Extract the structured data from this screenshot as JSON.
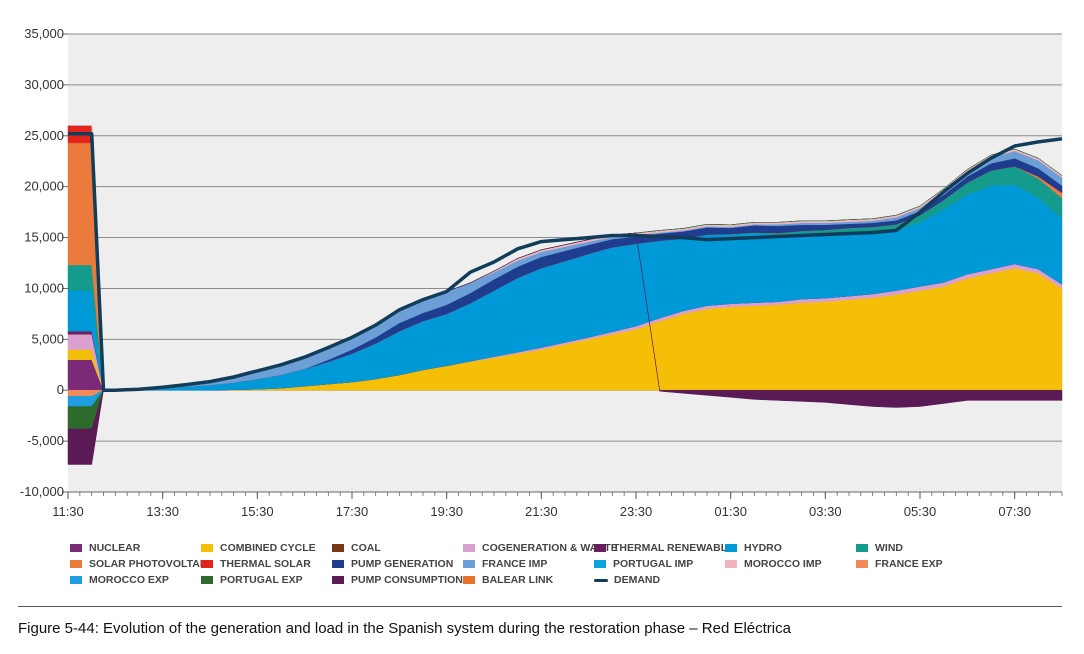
{
  "caption": "Figure 5-44: Evolution of the generation and load in the Spanish system during the restoration phase – Red Eléctrica",
  "legend": [
    {
      "label": "NUCLEAR",
      "color": "#7b2a78"
    },
    {
      "label": "COMBINED CYCLE",
      "color": "#f5bf08"
    },
    {
      "label": "COAL",
      "color": "#7a3514"
    },
    {
      "label": "COGENERATION & WASTE",
      "color": "#d9a0d0"
    },
    {
      "label": "THERMAL RENEWABLE",
      "color": "#6a1f5d"
    },
    {
      "label": "HYDRO",
      "color": "#0099d8"
    },
    {
      "label": "WIND",
      "color": "#159b8c"
    },
    {
      "label": "SOLAR PHOTOVOLTAIC",
      "color": "#ea7b3d"
    },
    {
      "label": "THERMAL SOLAR",
      "color": "#e3241b"
    },
    {
      "label": "PUMP GENERATION",
      "color": "#1f3d8f"
    },
    {
      "label": "FRANCE IMP",
      "color": "#6b9fd6"
    },
    {
      "label": "PORTUGAL IMP",
      "color": "#0aa3e0"
    },
    {
      "label": "MOROCCO IMP",
      "color": "#f2b3bf"
    },
    {
      "label": "FRANCE EXP",
      "color": "#ef8a5a"
    },
    {
      "label": "MOROCCO EXP",
      "color": "#1e9ee0"
    },
    {
      "label": "PORTUGAL EXP",
      "color": "#2d6b2d"
    },
    {
      "label": "PUMP CONSUMPTION",
      "color": "#5a1a55"
    },
    {
      "label": "BALEAR LINK",
      "color": "#e8712a"
    },
    {
      "label": "DEMAND",
      "color": "#123d5a",
      "line": true
    }
  ],
  "chart_data": {
    "type": "area",
    "stacked": true,
    "ylim": [
      -10000,
      35000
    ],
    "yticks": [
      -10000,
      -5000,
      0,
      5000,
      10000,
      15000,
      20000,
      25000,
      30000,
      35000
    ],
    "ytick_labels": [
      "-10,000",
      "-5,000",
      "0",
      "5,000",
      "10,000",
      "15,000",
      "20,000",
      "25,000",
      "30,000",
      "35,000"
    ],
    "x_hours": [
      11.5,
      12.0,
      12.25,
      12.5,
      13.0,
      13.5,
      14.0,
      14.5,
      15.0,
      15.5,
      16.0,
      16.5,
      17.0,
      17.5,
      18.0,
      18.5,
      19.0,
      19.5,
      20.0,
      20.5,
      21.0,
      21.5,
      22.0,
      22.5,
      23.0,
      23.5,
      24.0,
      24.5,
      25.0,
      25.5,
      26.0,
      26.5,
      27.0,
      27.5,
      28.0,
      28.5,
      29.0,
      29.5,
      30.0,
      30.5,
      31.0,
      31.5,
      32.0,
      32.5
    ],
    "xticks": [
      11.5,
      13.5,
      15.5,
      17.5,
      19.5,
      21.5,
      23.5,
      25.5,
      27.5,
      29.5,
      31.5
    ],
    "xtick_labels": [
      "11:30",
      "13:30",
      "15:30",
      "17:30",
      "19:30",
      "21:30",
      "23:30",
      "01:30",
      "03:30",
      "05:30",
      "07:30"
    ],
    "x_range": [
      11.5,
      32.5
    ],
    "series": [
      {
        "name": "NUCLEAR",
        "color": "#7b2a78",
        "values": [
          3000,
          3000,
          0,
          0,
          0,
          0,
          0,
          0,
          0,
          0,
          0,
          0,
          0,
          0,
          0,
          0,
          0,
          0,
          0,
          0,
          0,
          0,
          0,
          0,
          0,
          0,
          0,
          0,
          0,
          0,
          0,
          0,
          0,
          0,
          0,
          0,
          0,
          0,
          0,
          0,
          0,
          0,
          0,
          0
        ]
      },
      {
        "name": "COMBINED CYCLE",
        "color": "#f5bf08",
        "values": [
          1000,
          1000,
          0,
          0,
          0,
          0,
          0,
          0,
          50,
          100,
          200,
          400,
          600,
          800,
          1100,
          1500,
          2000,
          2400,
          2800,
          3200,
          3600,
          4000,
          4500,
          5000,
          5500,
          6000,
          6800,
          7500,
          8000,
          8200,
          8300,
          8400,
          8600,
          8700,
          8900,
          9100,
          9400,
          9800,
          10200,
          11000,
          11500,
          12000,
          11500,
          10000
        ]
      },
      {
        "name": "COAL",
        "color": "#7a3514",
        "values": [
          0,
          0,
          0,
          0,
          0,
          0,
          0,
          0,
          0,
          0,
          0,
          0,
          0,
          0,
          0,
          0,
          0,
          0,
          0,
          0,
          0,
          0,
          0,
          0,
          0,
          0,
          0,
          0,
          0,
          0,
          0,
          0,
          0,
          0,
          0,
          0,
          0,
          0,
          0,
          0,
          0,
          0,
          0,
          0
        ]
      },
      {
        "name": "COGENERATION & WASTE",
        "color": "#d9a0d0",
        "values": [
          1500,
          1500,
          0,
          0,
          0,
          0,
          0,
          0,
          0,
          0,
          0,
          0,
          0,
          0,
          0,
          0,
          0,
          0,
          50,
          100,
          150,
          200,
          200,
          200,
          250,
          300,
          300,
          300,
          300,
          300,
          300,
          300,
          350,
          350,
          350,
          350,
          400,
          400,
          400,
          400,
          400,
          400,
          400,
          400
        ]
      },
      {
        "name": "THERMAL RENEWABLE",
        "color": "#6a1f5d",
        "values": [
          300,
          300,
          0,
          0,
          0,
          0,
          0,
          0,
          0,
          0,
          0,
          0,
          0,
          0,
          0,
          0,
          0,
          0,
          0,
          0,
          0,
          0,
          0,
          0,
          0,
          0,
          0,
          0,
          0,
          0,
          0,
          0,
          0,
          0,
          0,
          0,
          0,
          0,
          0,
          0,
          0,
          0,
          0,
          0
        ]
      },
      {
        "name": "HYDRO",
        "color": "#0099d8",
        "values": [
          4000,
          4000,
          0,
          0,
          100,
          200,
          350,
          500,
          700,
          1000,
          1300,
          1700,
          2200,
          2800,
          3500,
          4300,
          4800,
          5100,
          5700,
          6500,
          7300,
          7800,
          8000,
          8200,
          8300,
          8100,
          7600,
          7100,
          7000,
          6800,
          6800,
          6600,
          6500,
          6400,
          6300,
          6100,
          5900,
          6300,
          7200,
          7800,
          8200,
          7800,
          7000,
          6500
        ]
      },
      {
        "name": "WIND",
        "color": "#159b8c",
        "values": [
          2500,
          2500,
          0,
          0,
          0,
          0,
          0,
          0,
          0,
          0,
          0,
          0,
          0,
          0,
          0,
          0,
          0,
          0,
          0,
          0,
          0,
          0,
          0,
          0,
          0,
          0,
          0,
          0,
          0,
          50,
          100,
          150,
          200,
          300,
          400,
          500,
          600,
          700,
          900,
          1200,
          1500,
          1800,
          1900,
          2000
        ]
      },
      {
        "name": "SOLAR PHOTOVOLTAIC",
        "color": "#ea7b3d",
        "values": [
          12000,
          12000,
          0,
          0,
          0,
          0,
          0,
          0,
          0,
          0,
          0,
          0,
          0,
          0,
          0,
          0,
          0,
          0,
          0,
          0,
          0,
          0,
          0,
          0,
          0,
          0,
          0,
          0,
          0,
          0,
          0,
          0,
          0,
          0,
          0,
          0,
          0,
          0,
          0,
          0,
          0,
          0,
          200,
          500
        ]
      },
      {
        "name": "THERMAL SOLAR",
        "color": "#e3241b",
        "values": [
          1700,
          1700,
          0,
          0,
          0,
          0,
          0,
          0,
          0,
          0,
          0,
          0,
          0,
          0,
          0,
          0,
          0,
          0,
          0,
          0,
          0,
          0,
          0,
          0,
          0,
          0,
          0,
          0,
          0,
          0,
          0,
          0,
          0,
          0,
          0,
          0,
          0,
          0,
          0,
          0,
          0,
          0,
          0,
          0
        ]
      },
      {
        "name": "PUMP GENERATION",
        "color": "#1f3d8f",
        "values": [
          0,
          0,
          0,
          0,
          0,
          0,
          0,
          0,
          0,
          0,
          0,
          0,
          200,
          400,
          600,
          800,
          800,
          900,
          1000,
          1100,
          1100,
          1100,
          1000,
          900,
          800,
          700,
          700,
          700,
          700,
          600,
          700,
          700,
          600,
          500,
          400,
          400,
          400,
          400,
          500,
          600,
          700,
          800,
          800,
          700
        ]
      },
      {
        "name": "FRANCE IMP",
        "color": "#6b9fd6",
        "values": [
          0,
          0,
          0,
          0,
          0,
          100,
          200,
          350,
          550,
          800,
          1000,
          1150,
          1200,
          1200,
          1200,
          1300,
          1400,
          1300,
          1000,
          700,
          600,
          500,
          400,
          300,
          200,
          150,
          100,
          100,
          100,
          100,
          100,
          150,
          200,
          200,
          200,
          200,
          300,
          300,
          400,
          500,
          600,
          700,
          800,
          800
        ]
      },
      {
        "name": "PORTUGAL IMP",
        "color": "#0aa3e0",
        "values": [
          0,
          0,
          0,
          0,
          0,
          0,
          0,
          0,
          0,
          0,
          0,
          0,
          0,
          0,
          0,
          0,
          0,
          0,
          0,
          0,
          0,
          0,
          0,
          0,
          0,
          0,
          0,
          0,
          0,
          0,
          0,
          0,
          0,
          0,
          0,
          0,
          0,
          0,
          0,
          0,
          0,
          0,
          0,
          0
        ]
      },
      {
        "name": "MOROCCO IMP",
        "color": "#f2b3bf",
        "values": [
          0,
          0,
          0,
          0,
          0,
          0,
          0,
          0,
          0,
          0,
          0,
          0,
          0,
          0,
          0,
          0,
          0,
          0,
          0,
          100,
          200,
          200,
          200,
          200,
          200,
          200,
          200,
          200,
          200,
          200,
          200,
          200,
          200,
          200,
          200,
          200,
          200,
          200,
          200,
          200,
          200,
          200,
          200,
          200
        ]
      },
      {
        "name": "FRANCE EXP",
        "color": "#ef8a5a",
        "values": [
          -600,
          -600,
          0,
          0,
          0,
          0,
          0,
          0,
          0,
          0,
          0,
          0,
          0,
          0,
          0,
          0,
          0,
          0,
          0,
          0,
          0,
          0,
          0,
          0,
          0,
          0,
          0,
          0,
          0,
          0,
          0,
          0,
          0,
          0,
          0,
          0,
          0,
          0,
          0,
          0,
          0,
          0,
          0,
          0
        ]
      },
      {
        "name": "MOROCCO EXP",
        "color": "#1e9ee0",
        "values": [
          -1000,
          -1000,
          0,
          0,
          0,
          0,
          0,
          0,
          0,
          0,
          0,
          0,
          0,
          0,
          0,
          0,
          0,
          0,
          0,
          0,
          0,
          0,
          0,
          0,
          0,
          0,
          0,
          0,
          0,
          0,
          0,
          0,
          0,
          0,
          0,
          0,
          0,
          0,
          0,
          0,
          0,
          0,
          0,
          0
        ]
      },
      {
        "name": "PORTUGAL EXP",
        "color": "#2d6b2d",
        "values": [
          -2200,
          -2200,
          0,
          0,
          0,
          0,
          0,
          0,
          0,
          0,
          0,
          0,
          0,
          0,
          0,
          0,
          0,
          0,
          0,
          0,
          0,
          0,
          0,
          0,
          0,
          0,
          0,
          0,
          0,
          0,
          0,
          0,
          0,
          0,
          0,
          0,
          0,
          0,
          0,
          0,
          0,
          0,
          0,
          0
        ]
      },
      {
        "name": "PUMP CONSUMPTION",
        "color": "#5a1a55",
        "values": [
          -3500,
          -3500,
          0,
          0,
          0,
          0,
          0,
          0,
          0,
          0,
          0,
          0,
          0,
          0,
          0,
          0,
          0,
          0,
          0,
          0,
          0,
          0,
          0,
          0,
          0,
          0,
          -100,
          -300,
          -500,
          -700,
          -900,
          -1000,
          -1100,
          -1200,
          -1400,
          -1600,
          -1700,
          -1600,
          -1300,
          -1000,
          -1000,
          -1000,
          -1000,
          -1000
        ]
      },
      {
        "name": "BALEAR LINK",
        "color": "#e8712a",
        "values": [
          0,
          0,
          0,
          0,
          0,
          0,
          0,
          0,
          0,
          0,
          0,
          0,
          0,
          0,
          0,
          0,
          0,
          0,
          0,
          0,
          0,
          0,
          0,
          0,
          0,
          0,
          0,
          0,
          0,
          0,
          0,
          0,
          0,
          0,
          0,
          0,
          0,
          0,
          0,
          0,
          0,
          0,
          0,
          0
        ]
      }
    ],
    "demand": {
      "name": "DEMAND",
      "color": "#123d5a",
      "values": [
        25200,
        25200,
        0,
        0,
        100,
        300,
        550,
        850,
        1300,
        1900,
        2500,
        3250,
        4200,
        5200,
        6400,
        7900,
        8900,
        9700,
        11600,
        12600,
        13900,
        14600,
        14800,
        15000,
        15200,
        15200,
        15100,
        15000,
        14800,
        14900,
        15000,
        15100,
        15200,
        15300,
        15400,
        15500,
        15700,
        17500,
        19500,
        21300,
        22800,
        24000,
        24400,
        24700
      ]
    }
  }
}
